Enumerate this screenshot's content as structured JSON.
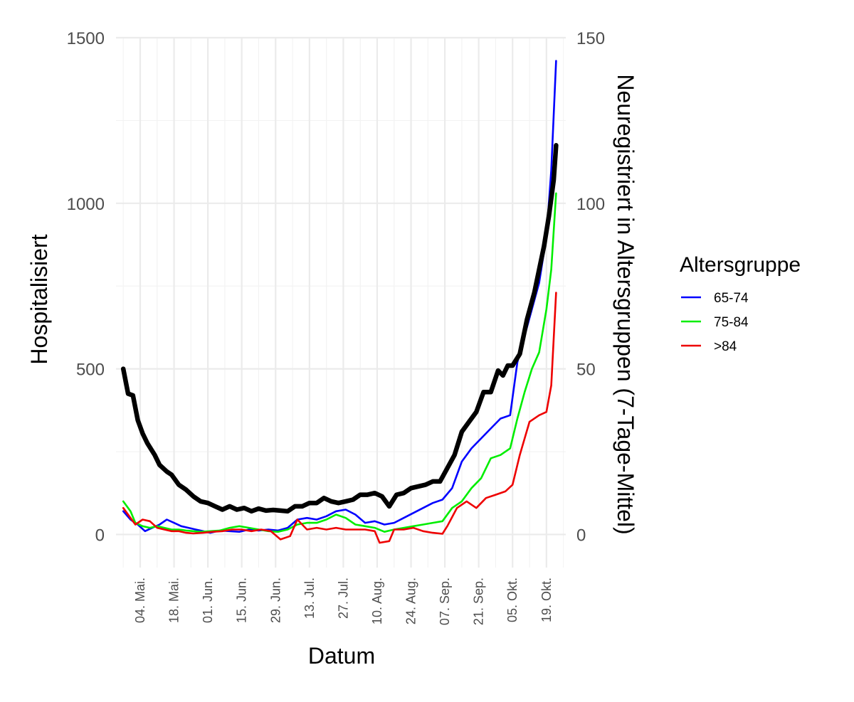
{
  "chart_data": {
    "type": "line",
    "xlabel": "Datum",
    "ylabel_left": "Hospitalisiert",
    "ylabel_right": "Neuregistriert in Altersgruppen (7-Tage-Mittel)",
    "x_range": [
      "2020-04-24",
      "2020-10-27"
    ],
    "ylim_left": [
      -100,
      1500
    ],
    "ylim_right": [
      -10,
      150
    ],
    "yticks_left": [
      0,
      500,
      1000,
      1500
    ],
    "yticks_left_labels": [
      "0",
      "500",
      "1000",
      "1500"
    ],
    "yticks_right": [
      0,
      50,
      100,
      150
    ],
    "yticks_right_labels": [
      "0",
      "50",
      "100",
      "150"
    ],
    "xticks": [
      "2020-05-04",
      "2020-05-18",
      "2020-06-01",
      "2020-06-15",
      "2020-06-29",
      "2020-07-13",
      "2020-07-27",
      "2020-08-10",
      "2020-08-24",
      "2020-09-07",
      "2020-09-21",
      "2020-10-05",
      "2020-10-19"
    ],
    "xtick_labels": [
      "04. Mai.",
      "18. Mai.",
      "01. Jun.",
      "15. Jun.",
      "29. Jun.",
      "13. Jul.",
      "27. Jul.",
      "10. Aug.",
      "24. Aug.",
      "07. Sep.",
      "21. Sep.",
      "05. Okt.",
      "19. Okt."
    ],
    "grid": true,
    "legend": {
      "title": "Altersgruppe",
      "position": "right"
    },
    "hospitalized": {
      "axis": "left",
      "color": "#000000",
      "points": [
        [
          "2020-04-27",
          500
        ],
        [
          "2020-04-29",
          425
        ],
        [
          "2020-05-01",
          420
        ],
        [
          "2020-05-03",
          345
        ],
        [
          "2020-05-05",
          305
        ],
        [
          "2020-05-07",
          275
        ],
        [
          "2020-05-10",
          240
        ],
        [
          "2020-05-12",
          210
        ],
        [
          "2020-05-15",
          190
        ],
        [
          "2020-05-17",
          180
        ],
        [
          "2020-05-20",
          150
        ],
        [
          "2020-05-23",
          135
        ],
        [
          "2020-05-26",
          115
        ],
        [
          "2020-05-29",
          100
        ],
        [
          "2020-06-01",
          95
        ],
        [
          "2020-06-04",
          85
        ],
        [
          "2020-06-07",
          75
        ],
        [
          "2020-06-10",
          85
        ],
        [
          "2020-06-13",
          75
        ],
        [
          "2020-06-16",
          80
        ],
        [
          "2020-06-19",
          70
        ],
        [
          "2020-06-22",
          78
        ],
        [
          "2020-06-25",
          72
        ],
        [
          "2020-06-28",
          74
        ],
        [
          "2020-07-01",
          72
        ],
        [
          "2020-07-04",
          70
        ],
        [
          "2020-07-07",
          85
        ],
        [
          "2020-07-10",
          85
        ],
        [
          "2020-07-13",
          95
        ],
        [
          "2020-07-16",
          95
        ],
        [
          "2020-07-19",
          110
        ],
        [
          "2020-07-22",
          100
        ],
        [
          "2020-07-25",
          95
        ],
        [
          "2020-07-28",
          100
        ],
        [
          "2020-07-31",
          105
        ],
        [
          "2020-08-03",
          120
        ],
        [
          "2020-08-06",
          120
        ],
        [
          "2020-08-09",
          125
        ],
        [
          "2020-08-12",
          115
        ],
        [
          "2020-08-15",
          85
        ],
        [
          "2020-08-18",
          120
        ],
        [
          "2020-08-21",
          125
        ],
        [
          "2020-08-24",
          140
        ],
        [
          "2020-08-27",
          145
        ],
        [
          "2020-08-30",
          150
        ],
        [
          "2020-09-02",
          160
        ],
        [
          "2020-09-05",
          160
        ],
        [
          "2020-09-08",
          200
        ],
        [
          "2020-09-11",
          240
        ],
        [
          "2020-09-14",
          310
        ],
        [
          "2020-09-17",
          340
        ],
        [
          "2020-09-20",
          370
        ],
        [
          "2020-09-23",
          430
        ],
        [
          "2020-09-26",
          430
        ],
        [
          "2020-09-29",
          495
        ],
        [
          "2020-10-01",
          480
        ],
        [
          "2020-10-03",
          510
        ],
        [
          "2020-10-05",
          510
        ],
        [
          "2020-10-08",
          545
        ],
        [
          "2020-10-11",
          650
        ],
        [
          "2020-10-14",
          730
        ],
        [
          "2020-10-16",
          800
        ],
        [
          "2020-10-18",
          870
        ],
        [
          "2020-10-20",
          960
        ],
        [
          "2020-10-22",
          1070
        ],
        [
          "2020-10-23",
          1175
        ]
      ]
    },
    "series": [
      {
        "name": "65-74",
        "axis": "right",
        "color": "#0000ff",
        "points": [
          [
            "2020-04-27",
            7
          ],
          [
            "2020-04-30",
            4.5
          ],
          [
            "2020-05-03",
            3
          ],
          [
            "2020-05-06",
            1
          ],
          [
            "2020-05-09",
            2
          ],
          [
            "2020-05-12",
            3
          ],
          [
            "2020-05-15",
            4.5
          ],
          [
            "2020-05-18",
            3.5
          ],
          [
            "2020-05-21",
            2.5
          ],
          [
            "2020-05-24",
            2
          ],
          [
            "2020-05-27",
            1.5
          ],
          [
            "2020-05-30",
            1
          ],
          [
            "2020-06-02",
            0.5
          ],
          [
            "2020-06-06",
            1.2
          ],
          [
            "2020-06-10",
            1
          ],
          [
            "2020-06-14",
            0.8
          ],
          [
            "2020-06-18",
            1.5
          ],
          [
            "2020-06-22",
            1.2
          ],
          [
            "2020-06-26",
            1.5
          ],
          [
            "2020-06-30",
            1.2
          ],
          [
            "2020-07-04",
            2
          ],
          [
            "2020-07-08",
            4.5
          ],
          [
            "2020-07-12",
            5
          ],
          [
            "2020-07-16",
            4.5
          ],
          [
            "2020-07-20",
            5.5
          ],
          [
            "2020-07-24",
            7
          ],
          [
            "2020-07-28",
            7.5
          ],
          [
            "2020-08-01",
            6
          ],
          [
            "2020-08-05",
            3.5
          ],
          [
            "2020-08-09",
            4
          ],
          [
            "2020-08-13",
            3
          ],
          [
            "2020-08-17",
            3.5
          ],
          [
            "2020-08-21",
            5
          ],
          [
            "2020-08-25",
            6.5
          ],
          [
            "2020-08-29",
            8
          ],
          [
            "2020-09-02",
            9.5
          ],
          [
            "2020-09-06",
            10.5
          ],
          [
            "2020-09-10",
            14
          ],
          [
            "2020-09-14",
            22
          ],
          [
            "2020-09-18",
            26
          ],
          [
            "2020-09-22",
            29
          ],
          [
            "2020-09-26",
            32
          ],
          [
            "2020-09-30",
            35
          ],
          [
            "2020-10-04",
            36
          ],
          [
            "2020-10-07",
            52
          ],
          [
            "2020-10-10",
            60
          ],
          [
            "2020-10-13",
            68
          ],
          [
            "2020-10-16",
            76
          ],
          [
            "2020-10-19",
            90
          ],
          [
            "2020-10-21",
            110
          ],
          [
            "2020-10-23",
            143
          ]
        ]
      },
      {
        "name": "75-84",
        "axis": "right",
        "color": "#00ee00",
        "points": [
          [
            "2020-04-27",
            10
          ],
          [
            "2020-04-30",
            7
          ],
          [
            "2020-05-02",
            3.5
          ],
          [
            "2020-05-05",
            2.5
          ],
          [
            "2020-05-08",
            2
          ],
          [
            "2020-05-11",
            2.5
          ],
          [
            "2020-05-14",
            2
          ],
          [
            "2020-05-17",
            1.5
          ],
          [
            "2020-05-20",
            1.5
          ],
          [
            "2020-05-23",
            1.2
          ],
          [
            "2020-05-26",
            1
          ],
          [
            "2020-05-29",
            0.8
          ],
          [
            "2020-06-02",
            1
          ],
          [
            "2020-06-06",
            1.2
          ],
          [
            "2020-06-10",
            2
          ],
          [
            "2020-06-14",
            2.5
          ],
          [
            "2020-06-18",
            2
          ],
          [
            "2020-06-22",
            1.5
          ],
          [
            "2020-06-26",
            1
          ],
          [
            "2020-06-30",
            0.8
          ],
          [
            "2020-07-04",
            1.5
          ],
          [
            "2020-07-08",
            3
          ],
          [
            "2020-07-12",
            3.5
          ],
          [
            "2020-07-16",
            3.5
          ],
          [
            "2020-07-20",
            4.5
          ],
          [
            "2020-07-24",
            6
          ],
          [
            "2020-07-28",
            5
          ],
          [
            "2020-08-01",
            3
          ],
          [
            "2020-08-05",
            2.5
          ],
          [
            "2020-08-09",
            2
          ],
          [
            "2020-08-13",
            0.8
          ],
          [
            "2020-08-17",
            1.5
          ],
          [
            "2020-08-21",
            2
          ],
          [
            "2020-08-25",
            2.5
          ],
          [
            "2020-08-29",
            3
          ],
          [
            "2020-09-02",
            3.5
          ],
          [
            "2020-09-06",
            4
          ],
          [
            "2020-09-10",
            8
          ],
          [
            "2020-09-14",
            10
          ],
          [
            "2020-09-18",
            14
          ],
          [
            "2020-09-22",
            17
          ],
          [
            "2020-09-26",
            23
          ],
          [
            "2020-09-30",
            24
          ],
          [
            "2020-10-04",
            26
          ],
          [
            "2020-10-07",
            35
          ],
          [
            "2020-10-10",
            43
          ],
          [
            "2020-10-13",
            50
          ],
          [
            "2020-10-16",
            55
          ],
          [
            "2020-10-19",
            68
          ],
          [
            "2020-10-21",
            80
          ],
          [
            "2020-10-23",
            103
          ]
        ]
      },
      {
        "name": ">84",
        "axis": "right",
        "color": "#ee0000",
        "points": [
          [
            "2020-04-27",
            8
          ],
          [
            "2020-04-30",
            5
          ],
          [
            "2020-05-02",
            3
          ],
          [
            "2020-05-05",
            4.5
          ],
          [
            "2020-05-08",
            4
          ],
          [
            "2020-05-11",
            2
          ],
          [
            "2020-05-14",
            1.5
          ],
          [
            "2020-05-17",
            1
          ],
          [
            "2020-05-20",
            1
          ],
          [
            "2020-05-23",
            0.5
          ],
          [
            "2020-05-26",
            0.3
          ],
          [
            "2020-05-30",
            0.5
          ],
          [
            "2020-06-03",
            0.8
          ],
          [
            "2020-06-07",
            1
          ],
          [
            "2020-06-11",
            1.5
          ],
          [
            "2020-06-15",
            1.5
          ],
          [
            "2020-06-19",
            1
          ],
          [
            "2020-06-23",
            1.5
          ],
          [
            "2020-06-27",
            1
          ],
          [
            "2020-07-01",
            -1.5
          ],
          [
            "2020-07-05",
            -0.5
          ],
          [
            "2020-07-08",
            4.5
          ],
          [
            "2020-07-12",
            1.5
          ],
          [
            "2020-07-16",
            2
          ],
          [
            "2020-07-20",
            1.5
          ],
          [
            "2020-07-24",
            2
          ],
          [
            "2020-07-28",
            1.5
          ],
          [
            "2020-08-01",
            1.5
          ],
          [
            "2020-08-05",
            1.5
          ],
          [
            "2020-08-09",
            1
          ],
          [
            "2020-08-11",
            -2.5
          ],
          [
            "2020-08-15",
            -2
          ],
          [
            "2020-08-17",
            1.5
          ],
          [
            "2020-08-21",
            1.5
          ],
          [
            "2020-08-25",
            2
          ],
          [
            "2020-08-29",
            1
          ],
          [
            "2020-09-02",
            0.5
          ],
          [
            "2020-09-06",
            0.2
          ],
          [
            "2020-09-08",
            2.5
          ],
          [
            "2020-09-12",
            8
          ],
          [
            "2020-09-16",
            10
          ],
          [
            "2020-09-20",
            8
          ],
          [
            "2020-09-24",
            11
          ],
          [
            "2020-09-28",
            12
          ],
          [
            "2020-10-02",
            13
          ],
          [
            "2020-10-05",
            15
          ],
          [
            "2020-10-08",
            24
          ],
          [
            "2020-10-12",
            34
          ],
          [
            "2020-10-16",
            36
          ],
          [
            "2020-10-19",
            37
          ],
          [
            "2020-10-21",
            45
          ],
          [
            "2020-10-23",
            73
          ]
        ]
      }
    ]
  }
}
